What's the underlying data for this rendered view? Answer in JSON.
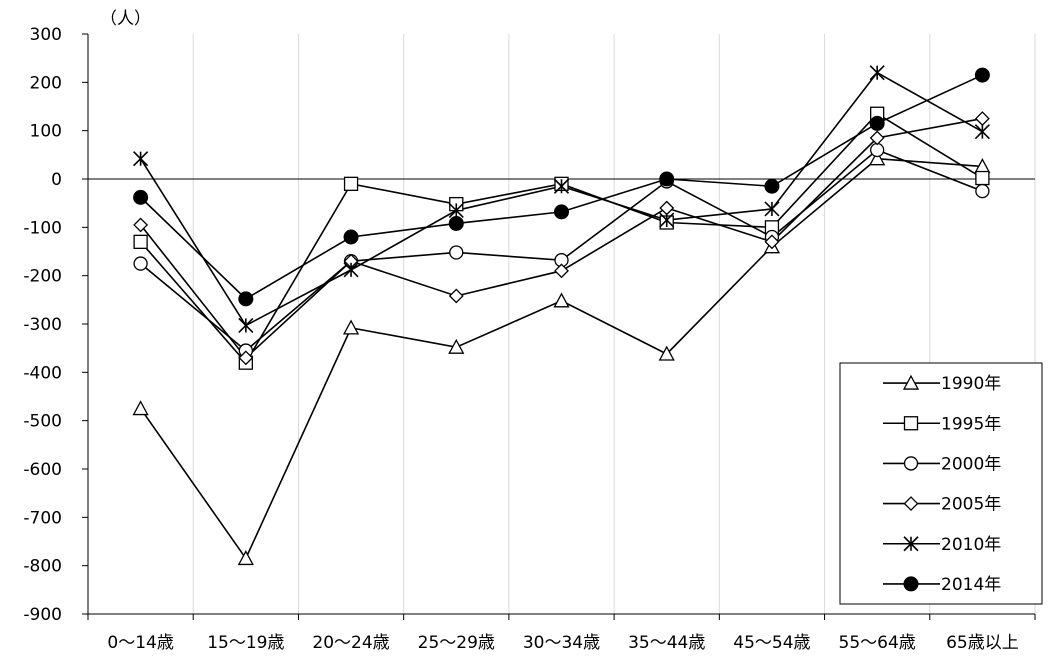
{
  "chart_data": {
    "type": "line",
    "title": "",
    "xlabel": "",
    "ylabel": "",
    "y_unit": "（人）",
    "ylim": [
      -900,
      300
    ],
    "y_ticks": [
      300,
      200,
      100,
      0,
      -100,
      -200,
      -300,
      -400,
      -500,
      -600,
      -700,
      -800,
      -900
    ],
    "grid": "vertical",
    "legend_position": "bottom-right",
    "categories": [
      "0～14歳",
      "15～19歳",
      "20～24歳",
      "25～29歳",
      "30～34歳",
      "35～44歳",
      "45～54歳",
      "55～64歳",
      "65歳以上"
    ],
    "series": [
      {
        "name": "1990年",
        "marker": "triangle-open",
        "values": [
          -475,
          -785,
          -308,
          -348,
          -252,
          -362,
          -140,
          42,
          26
        ]
      },
      {
        "name": "1995年",
        "marker": "square-open",
        "values": [
          -130,
          -380,
          -10,
          -52,
          -10,
          -90,
          -100,
          135,
          2
        ]
      },
      {
        "name": "2000年",
        "marker": "circle-open",
        "values": [
          -175,
          -355,
          -170,
          -152,
          -168,
          -5,
          -120,
          60,
          -25
        ]
      },
      {
        "name": "2005年",
        "marker": "diamond-open",
        "values": [
          -95,
          -370,
          -170,
          -242,
          -190,
          -60,
          -130,
          85,
          125
        ]
      },
      {
        "name": "2010年",
        "marker": "star",
        "values": [
          42,
          -303,
          -188,
          -65,
          -15,
          -85,
          -62,
          220,
          98
        ]
      },
      {
        "name": "2014年",
        "marker": "circle-filled",
        "values": [
          -38,
          -248,
          -120,
          -92,
          -68,
          0,
          -15,
          115,
          215
        ]
      }
    ]
  }
}
